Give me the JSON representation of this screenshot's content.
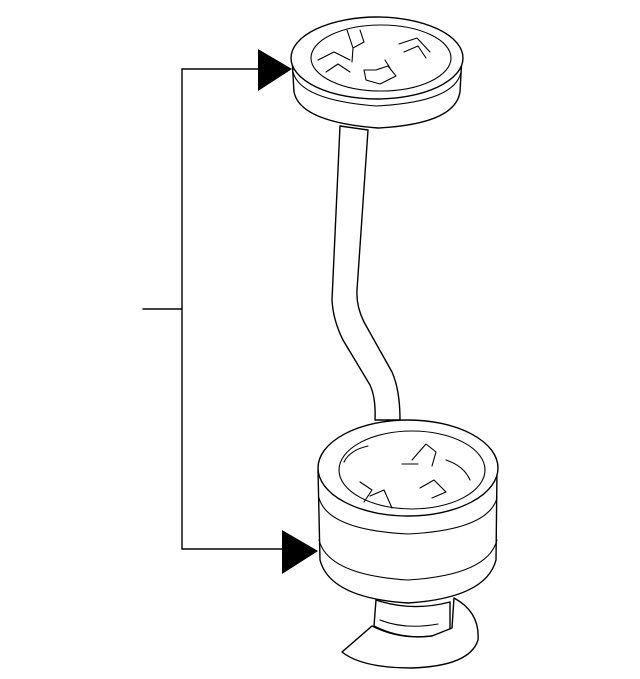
{
  "diagram": {
    "title": "",
    "callouts": [],
    "colors": {
      "background": "#ffffff",
      "line": "#000000"
    },
    "parts": [
      "upper-cap",
      "connecting-rod",
      "lower-housing",
      "mounting-base"
    ]
  }
}
